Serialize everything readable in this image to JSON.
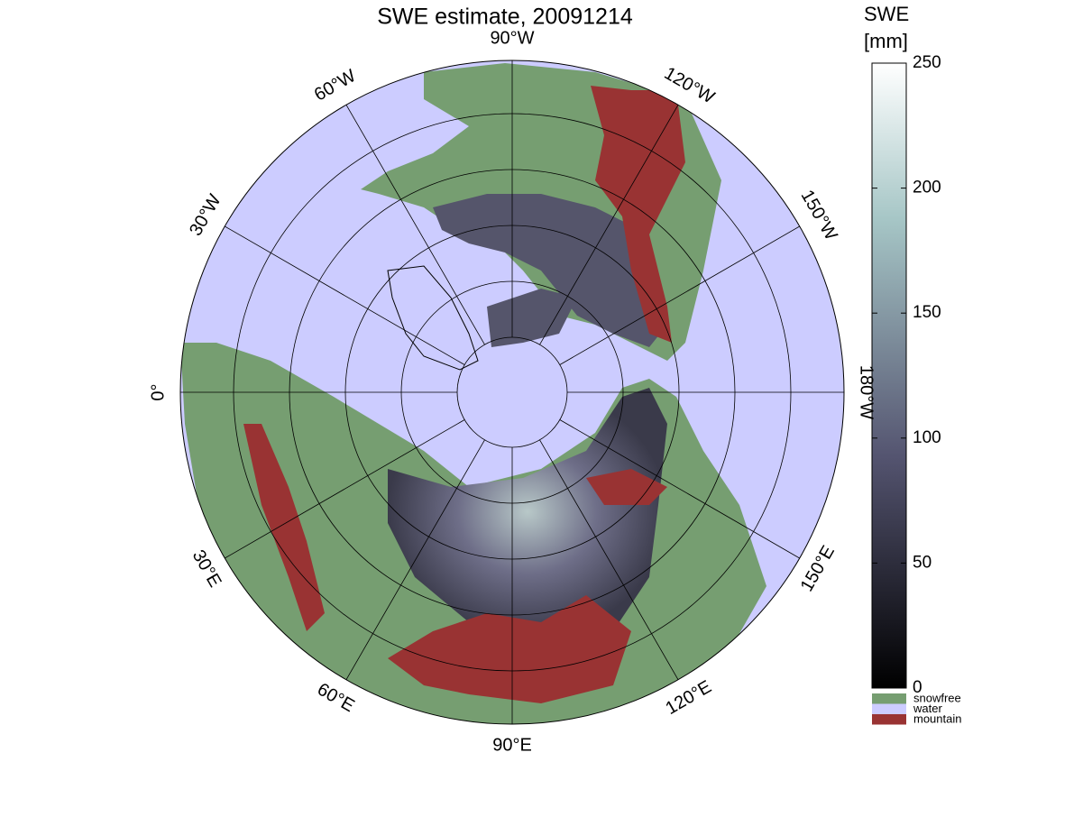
{
  "title": "SWE estimate, 20091214",
  "map": {
    "longitude_labels": [
      "0°",
      "30°E",
      "60°E",
      "90°E",
      "120°E",
      "150°E",
      "180°W",
      "150°W",
      "120°W",
      "90°W",
      "60°W",
      "30°W"
    ],
    "water_color": "#ccccff",
    "land_color": "#769e71",
    "snow_color": "#55556b",
    "mountain_color": "#993333"
  },
  "colorbar": {
    "label": [
      "SWE",
      "[mm]"
    ],
    "lim": [
      0,
      250
    ],
    "ticks": [
      0,
      50,
      100,
      150,
      200,
      250
    ]
  },
  "legend": [
    {
      "label": "snowfree",
      "color": "#769e71"
    },
    {
      "label": "water",
      "color": "#ccccff"
    },
    {
      "label": "mountain",
      "color": "#993333"
    }
  ]
}
